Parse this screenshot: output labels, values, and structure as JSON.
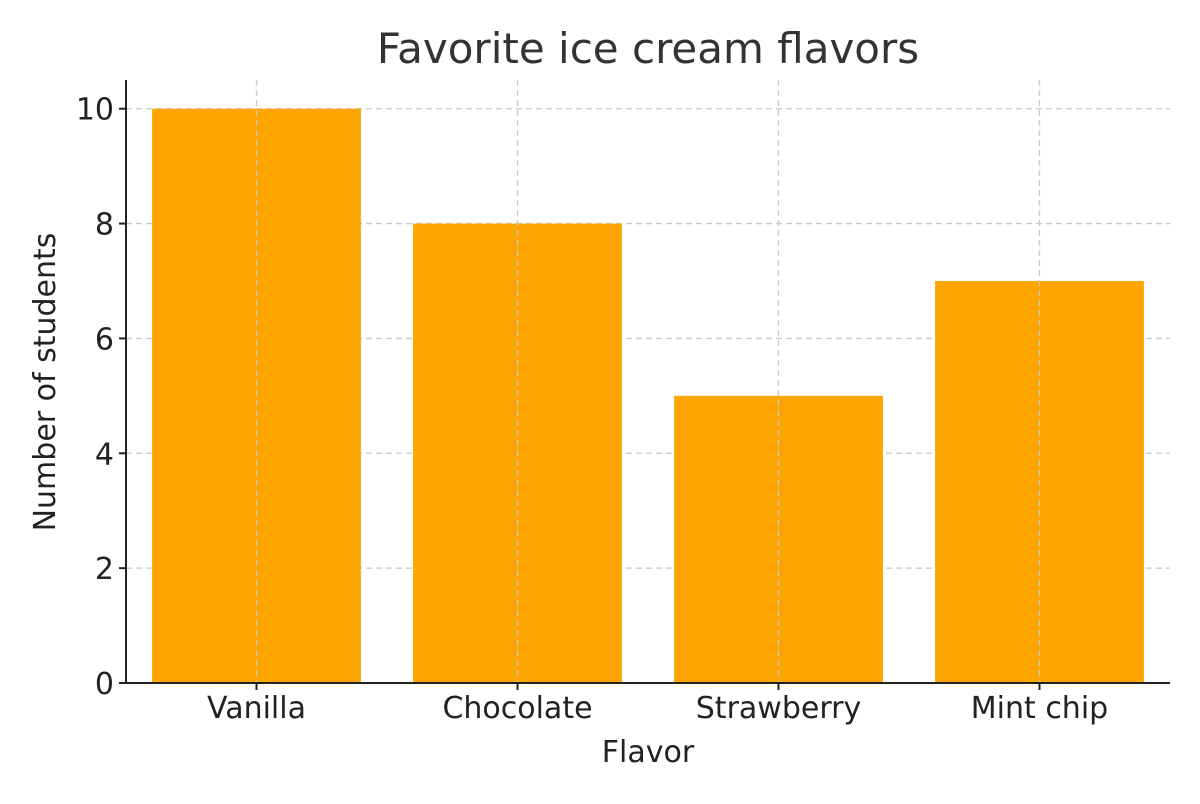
{
  "chart_data": {
    "type": "bar",
    "title": "Favorite ice cream flavors",
    "xlabel": "Flavor",
    "ylabel": "Number of students",
    "categories": [
      "Vanilla",
      "Chocolate",
      "Strawberry",
      "Mint chip"
    ],
    "values": [
      10,
      8,
      5,
      7
    ],
    "ylim": [
      0,
      10.5
    ],
    "yticks": [
      0,
      2,
      4,
      6,
      8,
      10
    ],
    "grid": true,
    "bar_color": "#FFA500"
  }
}
